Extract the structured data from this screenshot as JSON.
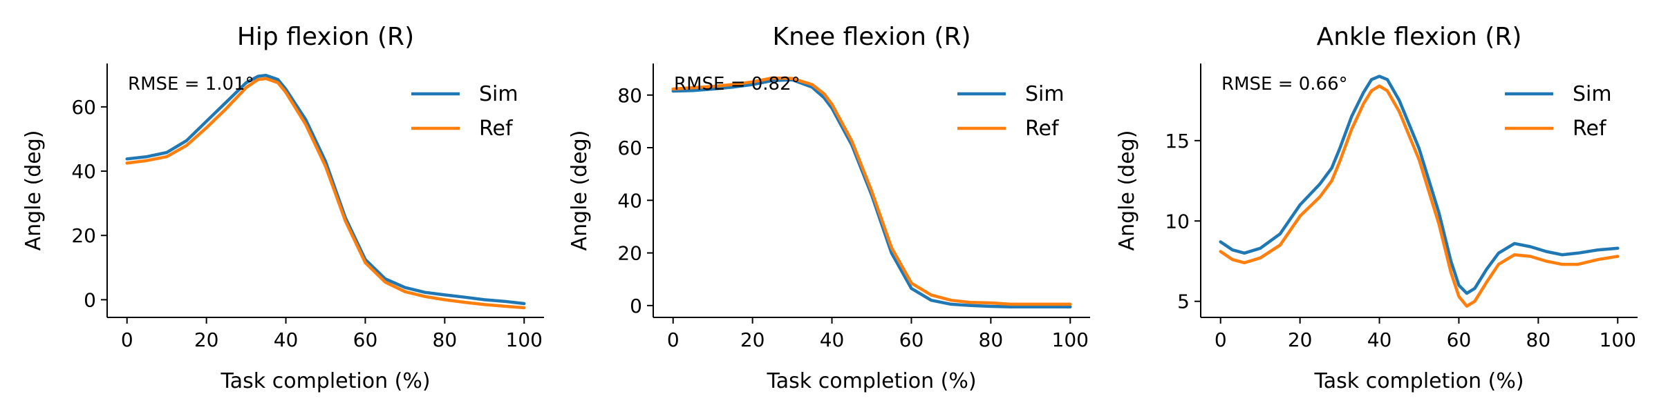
{
  "colors": {
    "sim": "#1f77b4",
    "ref": "#ff7f0e",
    "axis": "#000000"
  },
  "chart_data": [
    {
      "type": "line",
      "title": "Hip flexion (R)",
      "xlabel": "Task completion (%)",
      "ylabel": "Angle (deg)",
      "annotation": "RMSE = 1.01°",
      "xlim": [
        -5,
        105
      ],
      "ylim": [
        -5.5,
        73.5
      ],
      "xticks": [
        0,
        20,
        40,
        60,
        80,
        100
      ],
      "yticks": [
        0,
        20,
        40,
        60
      ],
      "legend": {
        "location": "upper right",
        "entries": [
          "Sim",
          "Ref"
        ]
      },
      "x": [
        0,
        5,
        10,
        15,
        20,
        25,
        30,
        33,
        35,
        38,
        40,
        45,
        50,
        55,
        60,
        65,
        70,
        75,
        80,
        85,
        90,
        95,
        100
      ],
      "series": [
        {
          "name": "Sim",
          "values": [
            43.8,
            44.5,
            45.8,
            49.5,
            55.5,
            61.5,
            67.5,
            69.5,
            69.8,
            68.5,
            65.5,
            56.0,
            43.0,
            25.5,
            12.5,
            6.5,
            3.8,
            2.3,
            1.5,
            0.8,
            0.0,
            -0.5,
            -1.2
          ]
        },
        {
          "name": "Ref",
          "values": [
            42.5,
            43.3,
            44.5,
            48.0,
            53.5,
            59.5,
            66.0,
            68.5,
            68.8,
            67.5,
            64.5,
            54.5,
            41.5,
            24.5,
            11.5,
            5.5,
            2.5,
            1.0,
            0.0,
            -0.8,
            -1.5,
            -2.0,
            -2.5
          ]
        }
      ]
    },
    {
      "type": "line",
      "title": "Knee flexion (R)",
      "xlabel": "Task completion (%)",
      "ylabel": "Angle (deg)",
      "annotation": "RMSE = 0.82°",
      "xlim": [
        -5,
        105
      ],
      "ylim": [
        -4.5,
        92
      ],
      "xticks": [
        0,
        20,
        40,
        60,
        80,
        100
      ],
      "yticks": [
        0,
        20,
        40,
        60,
        80
      ],
      "legend": {
        "location": "upper right",
        "entries": [
          "Sim",
          "Ref"
        ]
      },
      "x": [
        0,
        5,
        10,
        15,
        20,
        25,
        30,
        35,
        38,
        40,
        45,
        50,
        55,
        60,
        65,
        70,
        75,
        80,
        85,
        90,
        95,
        100
      ],
      "series": [
        {
          "name": "Sim",
          "values": [
            81.5,
            81.7,
            82.3,
            83.0,
            84.0,
            85.5,
            85.8,
            83.0,
            79.0,
            75.0,
            61.0,
            42.0,
            20.0,
            6.5,
            2.0,
            0.5,
            0.0,
            -0.3,
            -0.5,
            -0.5,
            -0.5,
            -0.5
          ]
        },
        {
          "name": "Ref",
          "values": [
            82.3,
            82.8,
            83.3,
            84.0,
            85.0,
            86.5,
            86.3,
            84.0,
            80.5,
            76.5,
            62.5,
            43.5,
            22.0,
            8.5,
            4.0,
            2.0,
            1.2,
            1.0,
            0.5,
            0.5,
            0.5,
            0.5
          ]
        }
      ]
    },
    {
      "type": "line",
      "title": "Ankle flexion (R)",
      "xlabel": "Task completion (%)",
      "ylabel": "Angle (deg)",
      "annotation": "RMSE = 0.66°",
      "xlim": [
        -5,
        105
      ],
      "ylim": [
        4.0,
        19.8
      ],
      "xticks": [
        0,
        20,
        40,
        60,
        80,
        100
      ],
      "yticks": [
        5,
        10,
        15
      ],
      "legend": {
        "location": "upper right",
        "entries": [
          "Sim",
          "Ref"
        ]
      },
      "x": [
        0,
        3,
        6,
        10,
        15,
        20,
        25,
        28,
        30,
        33,
        36,
        38,
        40,
        42,
        45,
        50,
        55,
        58,
        60,
        62,
        64,
        67,
        70,
        74,
        78,
        82,
        86,
        90,
        95,
        100
      ],
      "series": [
        {
          "name": "Sim",
          "values": [
            8.7,
            8.2,
            8.0,
            8.3,
            9.2,
            11.0,
            12.3,
            13.3,
            14.5,
            16.5,
            18.0,
            18.8,
            19.0,
            18.8,
            17.5,
            14.5,
            10.5,
            7.5,
            6.0,
            5.5,
            5.8,
            7.0,
            8.0,
            8.6,
            8.4,
            8.1,
            7.9,
            8.0,
            8.2,
            8.3
          ]
        },
        {
          "name": "Ref",
          "values": [
            8.1,
            7.6,
            7.4,
            7.7,
            8.5,
            10.3,
            11.5,
            12.5,
            13.7,
            15.7,
            17.3,
            18.1,
            18.4,
            18.1,
            16.8,
            13.8,
            9.8,
            6.8,
            5.3,
            4.7,
            5.0,
            6.2,
            7.3,
            7.9,
            7.8,
            7.5,
            7.3,
            7.3,
            7.6,
            7.8
          ]
        }
      ]
    }
  ]
}
